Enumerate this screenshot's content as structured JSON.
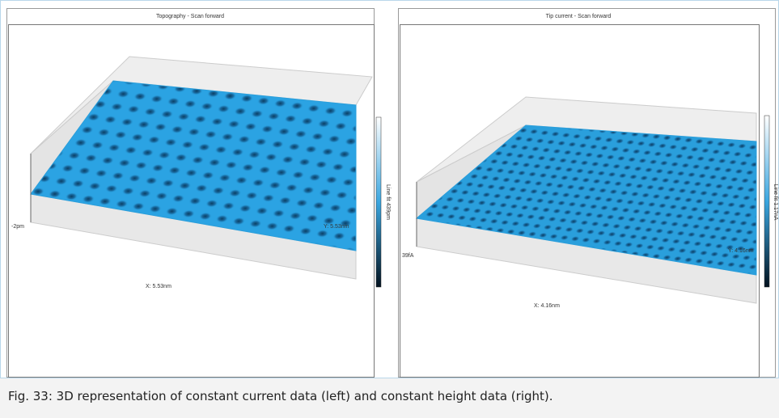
{
  "left_panel": {
    "title": "Topography - Scan forward",
    "z_min_label": "-2pm",
    "colorbar_label": "Line fit 439pm",
    "y_label": "Y: 5.53nm",
    "x_label": "X: 5.53nm"
  },
  "right_panel": {
    "title": "Tip current - Scan forward",
    "z_min_label": "39fA",
    "colorbar_label": "Line fit 1.17nA",
    "y_label": "Y: 4.16nm",
    "x_label": "X: 4.16nm"
  },
  "caption": "Fig. 33: 3D representation of constant current data (left) and constant height data (right)."
}
